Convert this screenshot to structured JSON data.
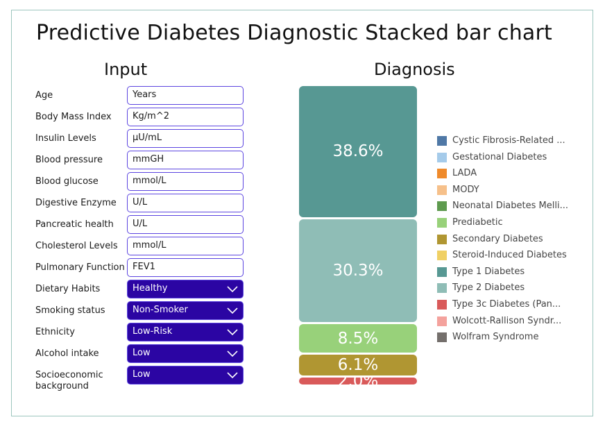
{
  "title": "Predictive Diabetes Diagnostic Stacked bar chart",
  "input_heading": "Input",
  "diagnosis_heading": "Diagnosis",
  "inputs": [
    {
      "label": "Age",
      "placeholder": "Years"
    },
    {
      "label": "Body Mass Index",
      "placeholder": "Kg/m^2"
    },
    {
      "label": "Insulin Levels",
      "placeholder": "μU/mL"
    },
    {
      "label": "Blood pressure",
      "placeholder": "mmGH"
    },
    {
      "label": "Blood glucose",
      "placeholder": "mmol/L"
    },
    {
      "label": "Digestive Enzyme",
      "placeholder": "U/L"
    },
    {
      "label": "Pancreatic health",
      "placeholder": "U/L"
    },
    {
      "label": "Cholesterol Levels",
      "placeholder": "mmol/L"
    },
    {
      "label": "Pulmonary Function",
      "placeholder": "FEV1"
    }
  ],
  "selects": [
    {
      "label": "Dietary Habits",
      "value": "Healthy"
    },
    {
      "label": "Smoking status",
      "value": "Non-Smoker"
    },
    {
      "label": "Ethnicity",
      "value": "Low-Risk"
    },
    {
      "label": "Alcohol intake",
      "value": "Low"
    },
    {
      "label": "Socioeconomic background",
      "value": "Low"
    }
  ],
  "colors": {
    "select_bg": "#2b05a3",
    "field_border": "#5b44e0",
    "frame_border": "#9cc5bd"
  },
  "chart_data": {
    "type": "bar",
    "stacked": true,
    "categories": [
      ""
    ],
    "series": [
      {
        "name": "Type 3c Diabetes (Pan...",
        "values": [
          2.0
        ],
        "label": "2.0%",
        "color": "#d95a5a"
      },
      {
        "name": "Secondary Diabetes",
        "values": [
          6.1
        ],
        "label": "6.1%",
        "color": "#b09632"
      },
      {
        "name": "Prediabetic",
        "values": [
          8.5
        ],
        "label": "8.5%",
        "color": "#98d17a"
      },
      {
        "name": "Type 2 Diabetes",
        "values": [
          30.3
        ],
        "label": "30.3%",
        "color": "#8fbdb6"
      },
      {
        "name": "Type 1 Diabetes",
        "values": [
          38.6
        ],
        "label": "38.6%",
        "color": "#579893"
      }
    ],
    "legend": [
      {
        "name": "Cystic Fibrosis-Related ...",
        "color": "#4f78a6"
      },
      {
        "name": "Gestational Diabetes",
        "color": "#a5cbea"
      },
      {
        "name": "LADA",
        "color": "#ef8a2b"
      },
      {
        "name": "MODY",
        "color": "#f6c08a"
      },
      {
        "name": "Neonatal Diabetes Melli...",
        "color": "#5e9a4e"
      },
      {
        "name": "Prediabetic",
        "color": "#98d17a"
      },
      {
        "name": "Secondary Diabetes",
        "color": "#b09632"
      },
      {
        "name": "Steroid-Induced Diabetes",
        "color": "#f0d064"
      },
      {
        "name": "Type 1 Diabetes",
        "color": "#579893"
      },
      {
        "name": "Type 2 Diabetes",
        "color": "#8fbdb6"
      },
      {
        "name": "Type 3c Diabetes (Pan...",
        "color": "#d95a5a"
      },
      {
        "name": "Wolcott-Rallison Syndr...",
        "color": "#f4a29d"
      },
      {
        "name": "Wolfram Syndrome",
        "color": "#746f6c"
      }
    ],
    "legend_position": "right",
    "grid": false
  }
}
